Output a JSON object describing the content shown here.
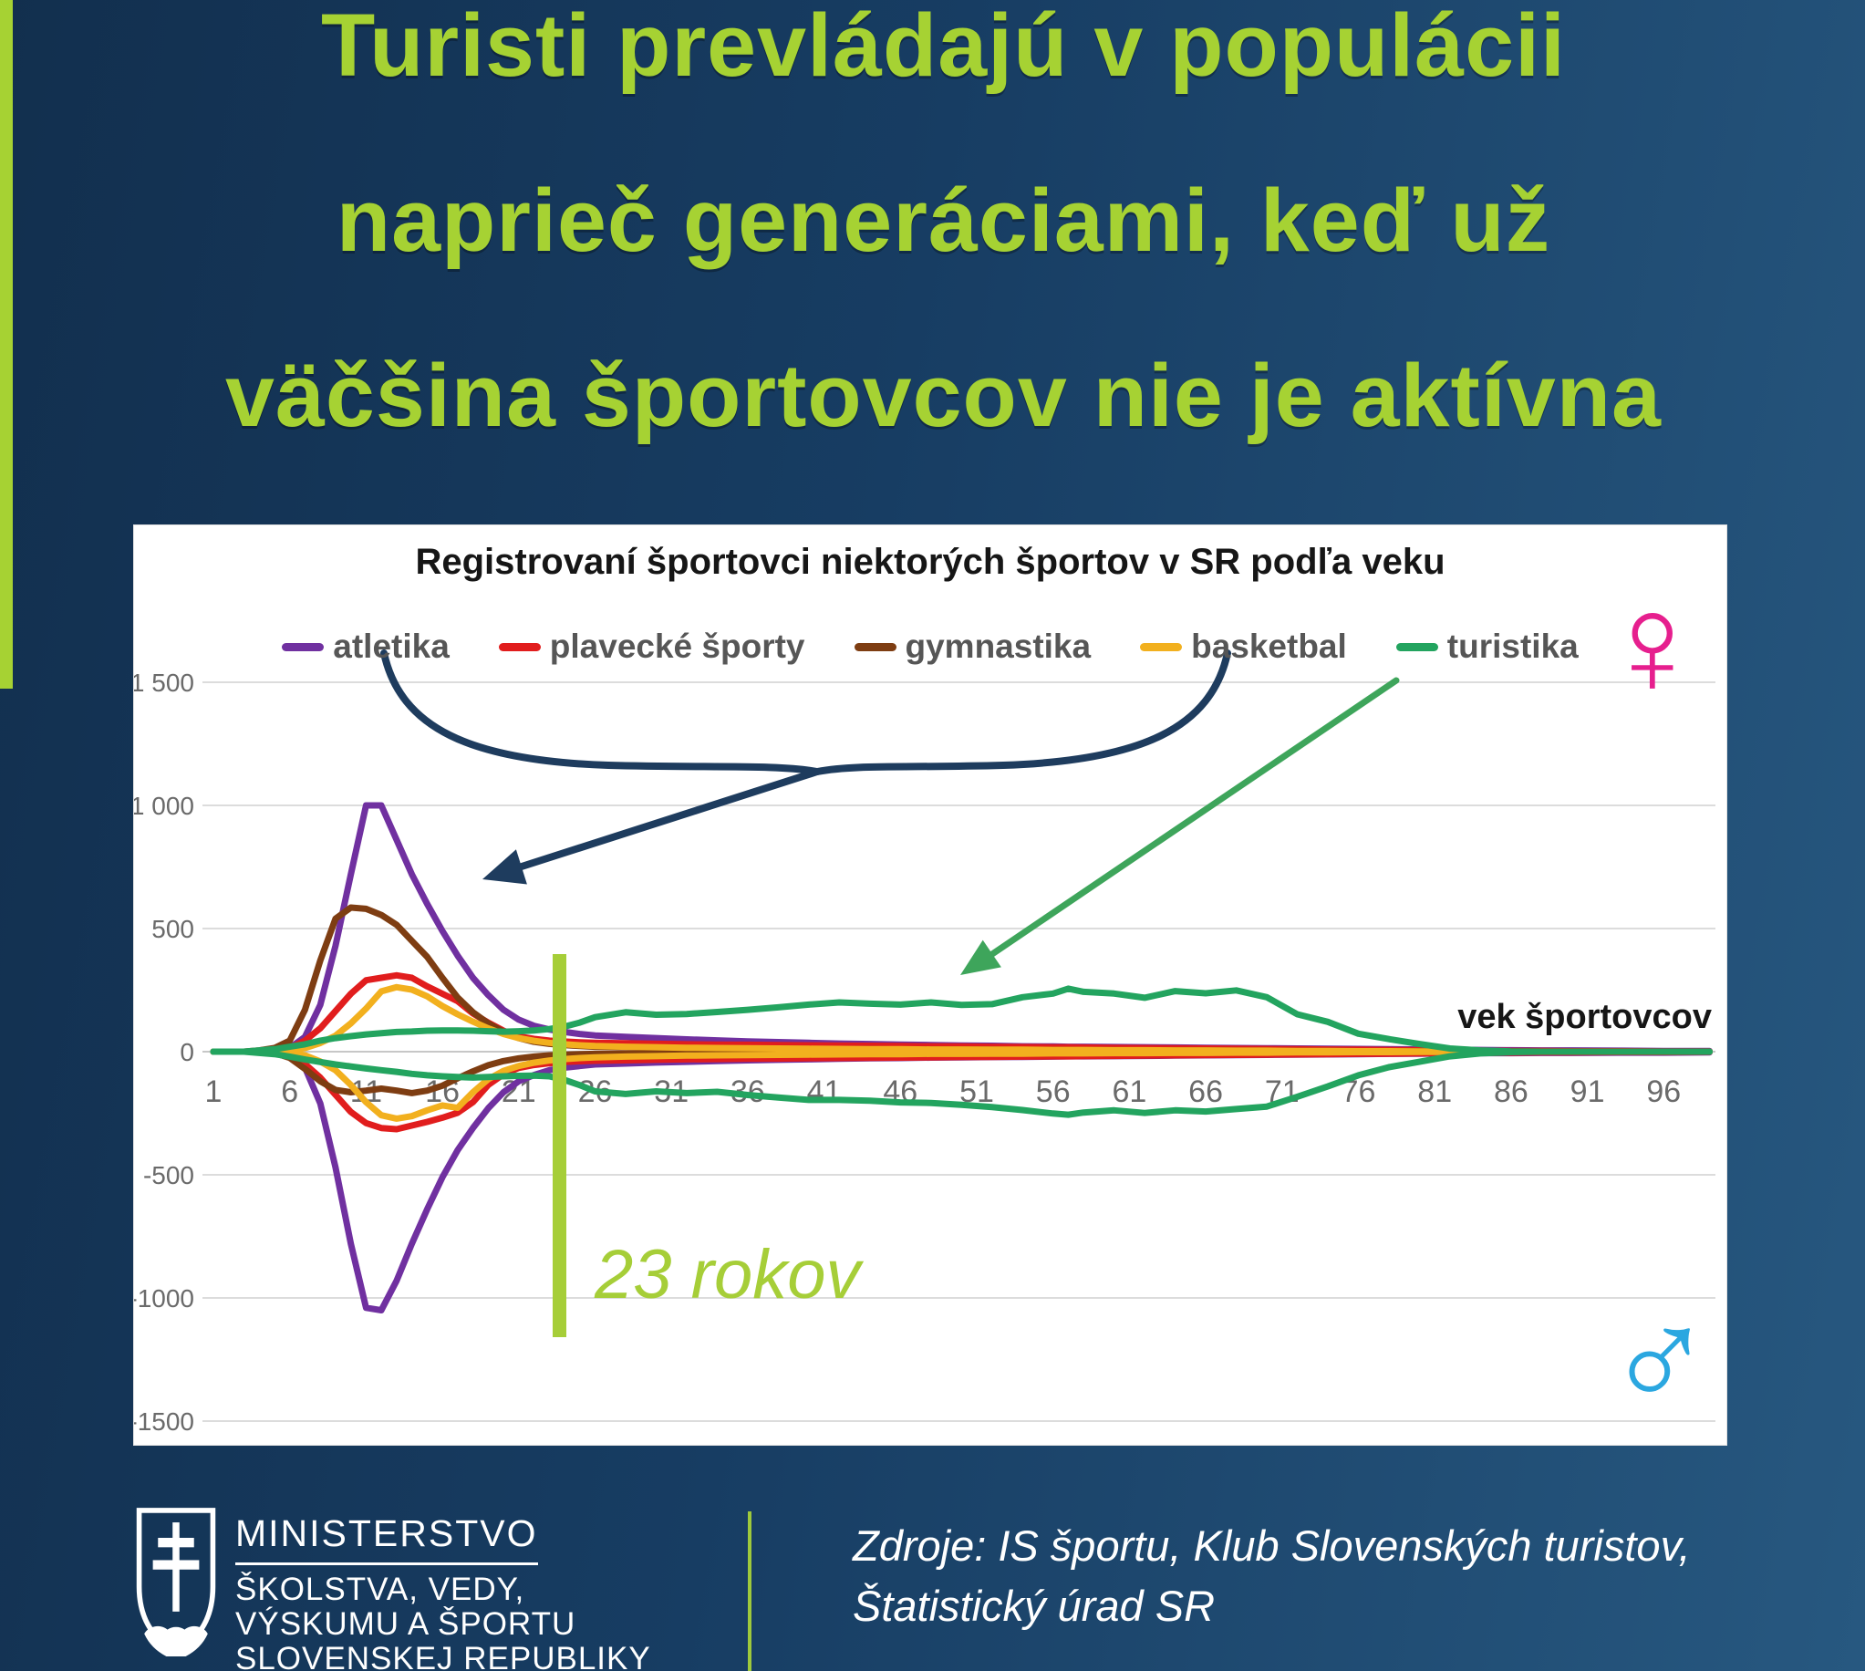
{
  "page": {
    "title_lines": [
      "Turisti prevládajú v populácii",
      "naprieč generáciami, keď už",
      "väčšina športovcov nie je aktívna"
    ],
    "title_color": "#a6d233",
    "background_left": "#122f4e",
    "background_right": "#275880"
  },
  "chart": {
    "panel_title": "Registrovaní športovci niektorých športov v SR podľa veku",
    "x_axis_label": "vek športovcov",
    "female_symbol": "♀",
    "female_color": "#e61f8e",
    "male_symbol": "♂",
    "male_color": "#2ba7e0",
    "age_marker_label": "23 rokov",
    "age_marker_color": "#a6ce38"
  },
  "chart_data": {
    "type": "line",
    "title": "Registrovaní športovci niektorých športov v SR podľa veku",
    "xlabel": "vek športovcov",
    "ylabel": "",
    "xlim": [
      1,
      99
    ],
    "ylim": [
      -1500,
      1500
    ],
    "grid": true,
    "legend_position": "top",
    "y_gridlines": [
      1500,
      1000,
      500,
      0,
      -500,
      -1000,
      -1500
    ],
    "y_tick_labels": [
      "1 500",
      "1 000",
      "500",
      "0",
      "-500",
      "-1000",
      "-1500"
    ],
    "x_tick_ages": [
      1,
      6,
      11,
      16,
      21,
      26,
      31,
      36,
      41,
      46,
      51,
      56,
      61,
      66,
      71,
      76,
      81,
      86,
      91,
      96
    ],
    "x": [
      1,
      2,
      3,
      4,
      5,
      6,
      7,
      8,
      9,
      10,
      11,
      12,
      13,
      14,
      15,
      16,
      17,
      18,
      19,
      20,
      21,
      22,
      23,
      24,
      25,
      26,
      28,
      30,
      32,
      34,
      36,
      38,
      40,
      42,
      44,
      46,
      48,
      50,
      52,
      54,
      56,
      57,
      58,
      60,
      62,
      64,
      66,
      68,
      70,
      72,
      74,
      76,
      78,
      80,
      82,
      84,
      86,
      88,
      90,
      93,
      96,
      99
    ],
    "series": [
      {
        "name": "atletika",
        "color": "#7030a0",
        "female": [
          0,
          0,
          0,
          0,
          5,
          15,
          60,
          190,
          430,
          720,
          1000,
          1000,
          860,
          720,
          600,
          490,
          390,
          300,
          230,
          170,
          130,
          105,
          90,
          80,
          72,
          66,
          60,
          55,
          50,
          46,
          42,
          39,
          36,
          33,
          31,
          29,
          27,
          25,
          24,
          22,
          21,
          20,
          20,
          19,
          18,
          17,
          16,
          15,
          14,
          13,
          12,
          11,
          10,
          9,
          8,
          7,
          6,
          5,
          5,
          4,
          3,
          3
        ],
        "male": [
          0,
          0,
          0,
          0,
          -5,
          -15,
          -65,
          -210,
          -470,
          -780,
          -1040,
          -1050,
          -930,
          -780,
          -640,
          -510,
          -400,
          -310,
          -230,
          -165,
          -120,
          -95,
          -75,
          -65,
          -58,
          -52,
          -48,
          -44,
          -41,
          -38,
          -35,
          -33,
          -31,
          -29,
          -27,
          -26,
          -24,
          -23,
          -22,
          -21,
          -20,
          -19,
          -19,
          -18,
          -17,
          -16,
          -15,
          -14,
          -13,
          -12,
          -11,
          -10,
          -9,
          -8,
          -7,
          -6,
          -6,
          -5,
          -5,
          -4,
          -4,
          -3
        ]
      },
      {
        "name": "plavecké športy",
        "color": "#e11d1d",
        "female": [
          0,
          0,
          0,
          0,
          5,
          15,
          45,
          95,
          165,
          235,
          290,
          300,
          310,
          300,
          265,
          235,
          205,
          155,
          118,
          85,
          62,
          52,
          45,
          41,
          38,
          36,
          34,
          32,
          30,
          29,
          28,
          27,
          26,
          25,
          24,
          23,
          22,
          21,
          20,
          19,
          18,
          18,
          17,
          16,
          15,
          14,
          13,
          12,
          11,
          10,
          9,
          8,
          7,
          6,
          5,
          4,
          3,
          3,
          2,
          2,
          1,
          1
        ],
        "male": [
          0,
          0,
          0,
          0,
          -5,
          -15,
          -50,
          -105,
          -175,
          -245,
          -290,
          -310,
          -315,
          -300,
          -285,
          -268,
          -248,
          -205,
          -135,
          -92,
          -66,
          -54,
          -47,
          -42,
          -39,
          -37,
          -35,
          -33,
          -31,
          -30,
          -29,
          -28,
          -27,
          -26,
          -25,
          -24,
          -23,
          -22,
          -21,
          -20,
          -19,
          -19,
          -18,
          -17,
          -16,
          -15,
          -14,
          -13,
          -12,
          -11,
          -10,
          -9,
          -8,
          -7,
          -6,
          -5,
          -4,
          -3,
          -3,
          -2,
          -2,
          -1
        ]
      },
      {
        "name": "gymnastika",
        "color": "#7e3d12",
        "female": [
          0,
          0,
          0,
          5,
          15,
          45,
          170,
          370,
          540,
          585,
          580,
          555,
          515,
          450,
          385,
          300,
          220,
          160,
          115,
          80,
          55,
          40,
          32,
          27,
          23,
          20,
          18,
          16,
          15,
          14,
          13,
          12,
          11,
          10,
          10,
          9,
          9,
          8,
          8,
          7,
          7,
          7,
          6,
          6,
          5,
          5,
          5,
          4,
          4,
          3,
          3,
          2,
          2,
          2,
          1,
          1,
          1,
          0,
          0,
          0,
          0,
          0
        ],
        "male": [
          0,
          0,
          0,
          0,
          -5,
          -25,
          -70,
          -120,
          -155,
          -165,
          -158,
          -150,
          -158,
          -168,
          -158,
          -138,
          -108,
          -80,
          -55,
          -38,
          -27,
          -20,
          -15,
          -12,
          -10,
          -9,
          -8,
          -7,
          -7,
          -6,
          -6,
          -5,
          -5,
          -5,
          -4,
          -4,
          -4,
          -3,
          -3,
          -3,
          -3,
          -3,
          -2,
          -2,
          -2,
          -2,
          -2,
          -1,
          -1,
          -1,
          -1,
          -1,
          0,
          0,
          0,
          0,
          0,
          0,
          0,
          0,
          0,
          0
        ]
      },
      {
        "name": "basketbal",
        "color": "#f2b01e",
        "female": [
          0,
          0,
          0,
          0,
          0,
          5,
          15,
          35,
          65,
          115,
          175,
          245,
          262,
          252,
          225,
          185,
          152,
          122,
          95,
          72,
          55,
          44,
          36,
          30,
          26,
          23,
          20,
          18,
          16,
          15,
          14,
          13,
          12,
          11,
          10,
          10,
          9,
          9,
          8,
          8,
          7,
          7,
          7,
          6,
          6,
          5,
          5,
          4,
          4,
          3,
          3,
          2,
          2,
          1,
          1,
          1,
          0,
          0,
          0,
          0,
          0,
          0
        ],
        "male": [
          0,
          0,
          0,
          0,
          0,
          -5,
          -15,
          -40,
          -75,
          -135,
          -205,
          -258,
          -272,
          -262,
          -238,
          -218,
          -228,
          -165,
          -112,
          -78,
          -58,
          -45,
          -36,
          -30,
          -26,
          -23,
          -20,
          -18,
          -16,
          -15,
          -14,
          -13,
          -12,
          -11,
          -10,
          -10,
          -9,
          -9,
          -8,
          -8,
          -7,
          -7,
          -7,
          -6,
          -6,
          -5,
          -5,
          -4,
          -4,
          -3,
          -3,
          -2,
          -2,
          -1,
          -1,
          -1,
          0,
          0,
          0,
          0,
          0,
          0
        ]
      },
      {
        "name": "turistika",
        "color": "#23a45f",
        "female": [
          0,
          0,
          0,
          5,
          10,
          20,
          30,
          45,
          55,
          63,
          70,
          75,
          80,
          82,
          85,
          86,
          86,
          85,
          83,
          81,
          83,
          86,
          92,
          102,
          118,
          140,
          160,
          150,
          153,
          161,
          170,
          180,
          191,
          200,
          195,
          191,
          200,
          190,
          193,
          221,
          236,
          256,
          243,
          236,
          219,
          246,
          237,
          249,
          221,
          152,
          121,
          73,
          51,
          31,
          13,
          5,
          1,
          0,
          0,
          0,
          0,
          0
        ],
        "male": [
          0,
          0,
          0,
          -5,
          -10,
          -20,
          -32,
          -42,
          -52,
          -60,
          -68,
          -75,
          -82,
          -90,
          -96,
          -100,
          -103,
          -105,
          -103,
          -100,
          -98,
          -97,
          -100,
          -115,
          -136,
          -161,
          -172,
          -161,
          -168,
          -163,
          -176,
          -186,
          -196,
          -196,
          -199,
          -206,
          -208,
          -216,
          -225,
          -237,
          -251,
          -256,
          -247,
          -238,
          -249,
          -238,
          -243,
          -233,
          -223,
          -183,
          -141,
          -96,
          -63,
          -41,
          -19,
          -7,
          -2,
          0,
          0,
          0,
          0,
          0
        ]
      }
    ],
    "annotations": {
      "age_line": {
        "age": 23,
        "label": "23 rokov",
        "color": "#a6ce38"
      },
      "female_side": "♀",
      "male_side": "♂"
    }
  },
  "footer": {
    "ministry_lines": [
      "MINISTERSTVO",
      "ŠKOLSTVA, VEDY,",
      "VÝSKUMU A ŠPORTU",
      "SLOVENSKEJ REPUBLIKY"
    ],
    "sources_lines": [
      "Zdroje: IS športu, Klub Slovenských turistov,",
      "Štatistický úrad SR"
    ]
  }
}
